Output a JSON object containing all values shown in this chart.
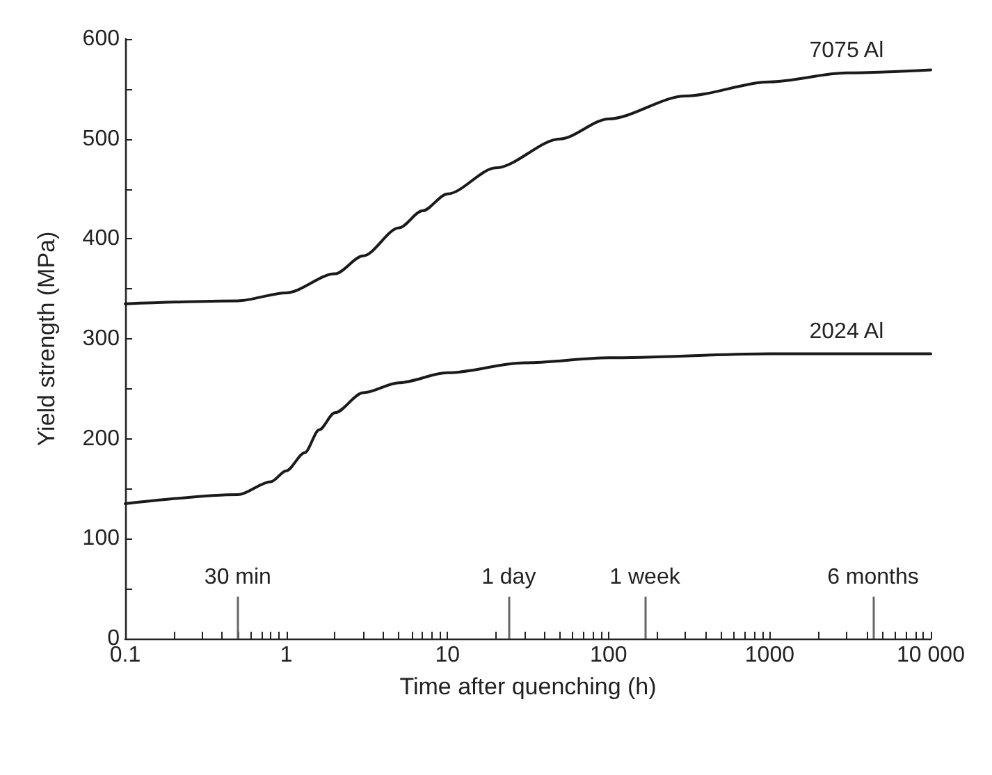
{
  "chart_data": {
    "type": "line",
    "xlabel": "Time after quenching (h)",
    "ylabel": "Yield strength (MPa)",
    "log": "x",
    "grid": false,
    "legend": false,
    "marker": "none",
    "line_style": "solid",
    "xlim": [
      0.1,
      10000
    ],
    "xticks": [
      0.1,
      {
        "value": 0.2,
        "label": null
      },
      {
        "value": 0.3,
        "label": null
      },
      {
        "value": 0.4,
        "label": null
      },
      {
        "value": 0.5,
        "label": null
      },
      {
        "value": 0.6,
        "label": null
      },
      {
        "value": 0.7,
        "label": null
      },
      {
        "value": 0.8,
        "label": null
      },
      {
        "value": 0.9,
        "label": null
      },
      1,
      {
        "value": 2,
        "label": null
      },
      {
        "value": 3,
        "label": null
      },
      {
        "value": 4,
        "label": null
      },
      {
        "value": 5,
        "label": null
      },
      {
        "value": 6,
        "label": null
      },
      {
        "value": 7,
        "label": null
      },
      {
        "value": 8,
        "label": null
      },
      {
        "value": 9,
        "label": null
      },
      10,
      {
        "value": 20,
        "label": null
      },
      {
        "value": 30,
        "label": null
      },
      {
        "value": 40,
        "label": null
      },
      {
        "value": 50,
        "label": null
      },
      {
        "value": 60,
        "label": null
      },
      {
        "value": 70,
        "label": null
      },
      {
        "value": 80,
        "label": null
      },
      {
        "value": 90,
        "label": null
      },
      100,
      {
        "value": 200,
        "label": null
      },
      {
        "value": 300,
        "label": null
      },
      {
        "value": 400,
        "label": null
      },
      {
        "value": 500,
        "label": null
      },
      {
        "value": 600,
        "label": null
      },
      {
        "value": 700,
        "label": null
      },
      {
        "value": 800,
        "label": null
      },
      {
        "value": 900,
        "label": null
      },
      1000,
      {
        "value": 2000,
        "label": null
      },
      {
        "value": 3000,
        "label": null
      },
      {
        "value": 4000,
        "label": null
      },
      {
        "value": 5000,
        "label": null
      },
      {
        "value": 6000,
        "label": null
      },
      {
        "value": 7000,
        "label": null
      },
      {
        "value": 8000,
        "label": null
      },
      {
        "value": 9000,
        "label": null
      },
      {
        "value": 10000,
        "label": "10 000"
      }
    ],
    "ylim": [
      0,
      600
    ],
    "yticks": [
      0,
      {
        "value": 50,
        "label": null
      },
      100,
      {
        "value": 150,
        "label": null
      },
      200,
      {
        "value": 250,
        "label": null
      },
      300,
      {
        "value": 350,
        "label": null
      },
      400,
      {
        "value": 450,
        "label": null
      },
      500,
      {
        "value": 550,
        "label": null
      },
      600
    ],
    "ref_lines": [
      {
        "axis": "x",
        "value": 0.5,
        "label": "30 min",
        "color": "#666666"
      },
      {
        "axis": "x",
        "value": 24,
        "label": "1 day",
        "color": "#666666"
      },
      {
        "axis": "x",
        "value": 168,
        "label": "1 week",
        "color": "#666666"
      },
      {
        "axis": "x",
        "value": 4380,
        "label": "6 months",
        "color": "#666666"
      }
    ],
    "series": [
      {
        "name": "7075 Al",
        "color": "#1a1a1a",
        "x": [
          0.1,
          0.5,
          1,
          2,
          3,
          5,
          7,
          10,
          20,
          50,
          100,
          300,
          1000,
          3000,
          10000
        ],
        "values": [
          335,
          338,
          346,
          365,
          383,
          411,
          428,
          445,
          471,
          500,
          520,
          543,
          557,
          566,
          569
        ]
      },
      {
        "name": "2024 Al",
        "color": "#1a1a1a",
        "x": [
          0.1,
          0.5,
          0.8,
          1,
          1.3,
          1.6,
          2,
          3,
          5,
          10,
          30,
          100,
          1000,
          3000,
          10000
        ],
        "values": [
          135,
          144,
          157,
          168,
          186,
          209,
          226,
          246,
          256,
          266,
          276,
          281,
          285,
          285,
          285
        ]
      }
    ]
  }
}
